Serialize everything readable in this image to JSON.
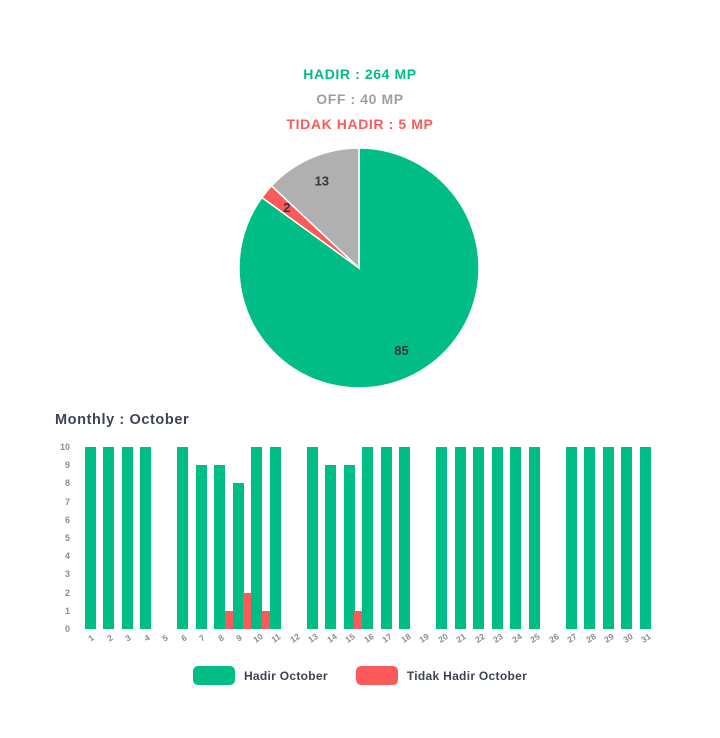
{
  "header": {
    "hadir": "HADIR : 264 MP",
    "off": "OFF : 40 MP",
    "tidak_hadir": "TIDAK HADIR : 5 MP"
  },
  "colors": {
    "green": "#00bd86",
    "red": "#fb5a5a",
    "gray": "#b0b0b0",
    "dark_text": "#3d4451",
    "axis_text": "#8c8c8c"
  },
  "chart_data": [
    {
      "type": "pie",
      "slices": [
        {
          "name": "Hadir",
          "value": 85,
          "display": "85",
          "color": "#00bd86"
        },
        {
          "name": "Tidak Hadir",
          "value": 2,
          "display": "2",
          "color": "#fb5a5a"
        },
        {
          "name": "Off",
          "value": 13,
          "display": "13",
          "color": "#b0b0b0"
        }
      ],
      "start_angle_deg": 0,
      "direction": "clockwise",
      "unit": "percent"
    },
    {
      "type": "bar",
      "title": "Monthly : October",
      "categories": [
        1,
        2,
        3,
        4,
        5,
        6,
        7,
        8,
        9,
        10,
        11,
        12,
        13,
        14,
        15,
        16,
        17,
        18,
        19,
        20,
        21,
        22,
        23,
        24,
        25,
        26,
        27,
        28,
        29,
        30,
        31
      ],
      "series": [
        {
          "name": "Hadir October",
          "color": "#00bd86",
          "values": [
            10,
            10,
            10,
            10,
            null,
            10,
            9,
            9,
            8,
            10,
            10,
            null,
            10,
            9,
            9,
            10,
            10,
            10,
            null,
            10,
            10,
            10,
            10,
            10,
            10,
            null,
            10,
            10,
            10,
            10,
            10
          ]
        },
        {
          "name": "Tidak Hadir October",
          "color": "#fb5a5a",
          "values": [
            0,
            0,
            0,
            0,
            null,
            0,
            0,
            1,
            2,
            1,
            0,
            null,
            0,
            0,
            1,
            0,
            0,
            0,
            null,
            0,
            0,
            0,
            0,
            0,
            0,
            null,
            0,
            0,
            0,
            0,
            0
          ]
        }
      ],
      "ylim": [
        0,
        10
      ],
      "yticks": [
        0,
        1,
        2,
        3,
        4,
        5,
        6,
        7,
        8,
        9,
        10
      ],
      "grid": false,
      "legend_position": "bottom"
    }
  ]
}
